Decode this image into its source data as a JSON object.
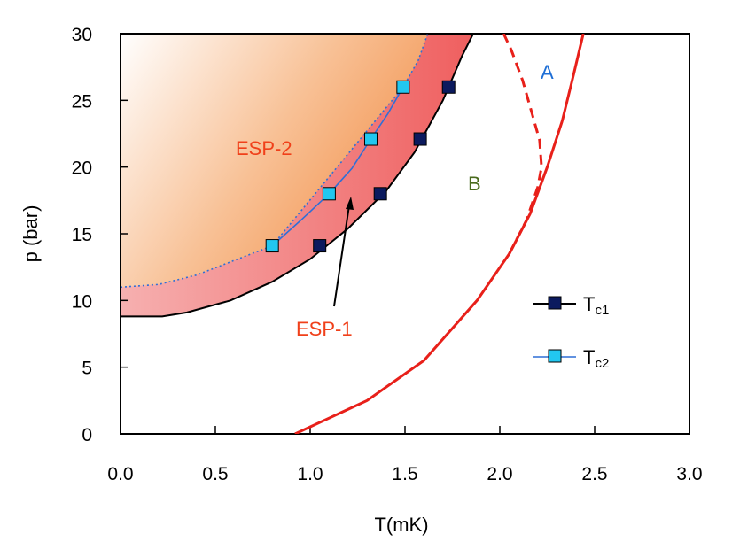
{
  "chart_data": {
    "type": "line",
    "title": "",
    "xlabel": "T(mK)",
    "ylabel": "p (bar)",
    "xlim": [
      0.0,
      3.0
    ],
    "ylim": [
      0,
      30
    ],
    "x_ticks": [
      "0.0",
      "0.5",
      "1.0",
      "1.5",
      "2.0",
      "2.5",
      "3.0"
    ],
    "y_ticks": [
      "0",
      "5",
      "10",
      "15",
      "20",
      "25",
      "30"
    ],
    "grid": false,
    "legend_position": "right",
    "colors": {
      "tc1_line": "#000000",
      "tc1_marker": "#0b1a5e",
      "tc2_line": "#2f6fd6",
      "tc2_marker": "#22c7f0",
      "phase_line": "#e8201a",
      "esp1_fill": "#f07070",
      "esp2_fill": "#f29a5a",
      "label_A": "#1f6fd6",
      "label_B": "#4a6b1e",
      "label_esp": "#f0401a"
    },
    "series": [
      {
        "name": "Tc1",
        "line": [
          [
            0.0,
            8.8
          ],
          [
            0.22,
            8.8
          ],
          [
            0.35,
            9.1
          ],
          [
            0.58,
            10.0
          ],
          [
            0.8,
            11.4
          ],
          [
            1.0,
            13.1
          ],
          [
            1.2,
            15.4
          ],
          [
            1.4,
            18.2
          ],
          [
            1.55,
            21.1
          ],
          [
            1.7,
            25.0
          ],
          [
            1.8,
            28.3
          ],
          [
            1.86,
            30.0
          ]
        ],
        "markers": [
          [
            1.05,
            14.1
          ],
          [
            1.37,
            18.0
          ],
          [
            1.58,
            22.1
          ],
          [
            1.73,
            26.0
          ]
        ]
      },
      {
        "name": "Tc2",
        "line": [
          [
            0.8,
            14.1
          ],
          [
            0.95,
            16.0
          ],
          [
            1.1,
            18.0
          ],
          [
            1.22,
            19.9
          ],
          [
            1.32,
            22.1
          ],
          [
            1.41,
            24.0
          ],
          [
            1.49,
            26.0
          ]
        ],
        "dotted": [
          [
            0.0,
            11.0
          ],
          [
            0.2,
            11.2
          ],
          [
            0.4,
            11.9
          ],
          [
            0.6,
            13.0
          ],
          [
            0.8,
            14.1
          ],
          [
            1.49,
            26.0
          ],
          [
            1.57,
            28.0
          ],
          [
            1.62,
            30.0
          ]
        ],
        "markers": [
          [
            0.8,
            14.1
          ],
          [
            1.1,
            18.0
          ],
          [
            1.32,
            22.1
          ],
          [
            1.49,
            26.0
          ]
        ]
      }
    ],
    "phase_boundaries": [
      {
        "label": "solid",
        "points": [
          [
            0.92,
            0.0
          ],
          [
            1.3,
            2.5
          ],
          [
            1.6,
            5.5
          ],
          [
            1.88,
            10.0
          ],
          [
            2.05,
            13.5
          ],
          [
            2.16,
            16.5
          ],
          [
            2.25,
            20.0
          ],
          [
            2.33,
            23.5
          ],
          [
            2.39,
            27.0
          ],
          [
            2.44,
            30.0
          ]
        ]
      },
      {
        "label": "dashed",
        "points": [
          [
            2.05,
            13.5
          ],
          [
            2.14,
            16.0
          ],
          [
            2.2,
            18.5
          ],
          [
            2.22,
            20.0
          ],
          [
            2.21,
            22.0
          ],
          [
            2.17,
            24.0
          ],
          [
            2.12,
            26.5
          ],
          [
            2.06,
            28.8
          ],
          [
            2.02,
            30.0
          ]
        ]
      }
    ],
    "annotations": {
      "A": "A",
      "B": "B",
      "esp2": "ESP-2",
      "esp1": "ESP-1"
    },
    "legend": [
      {
        "main": "T",
        "sub": "c1"
      },
      {
        "main": "T",
        "sub": "c2"
      }
    ]
  }
}
